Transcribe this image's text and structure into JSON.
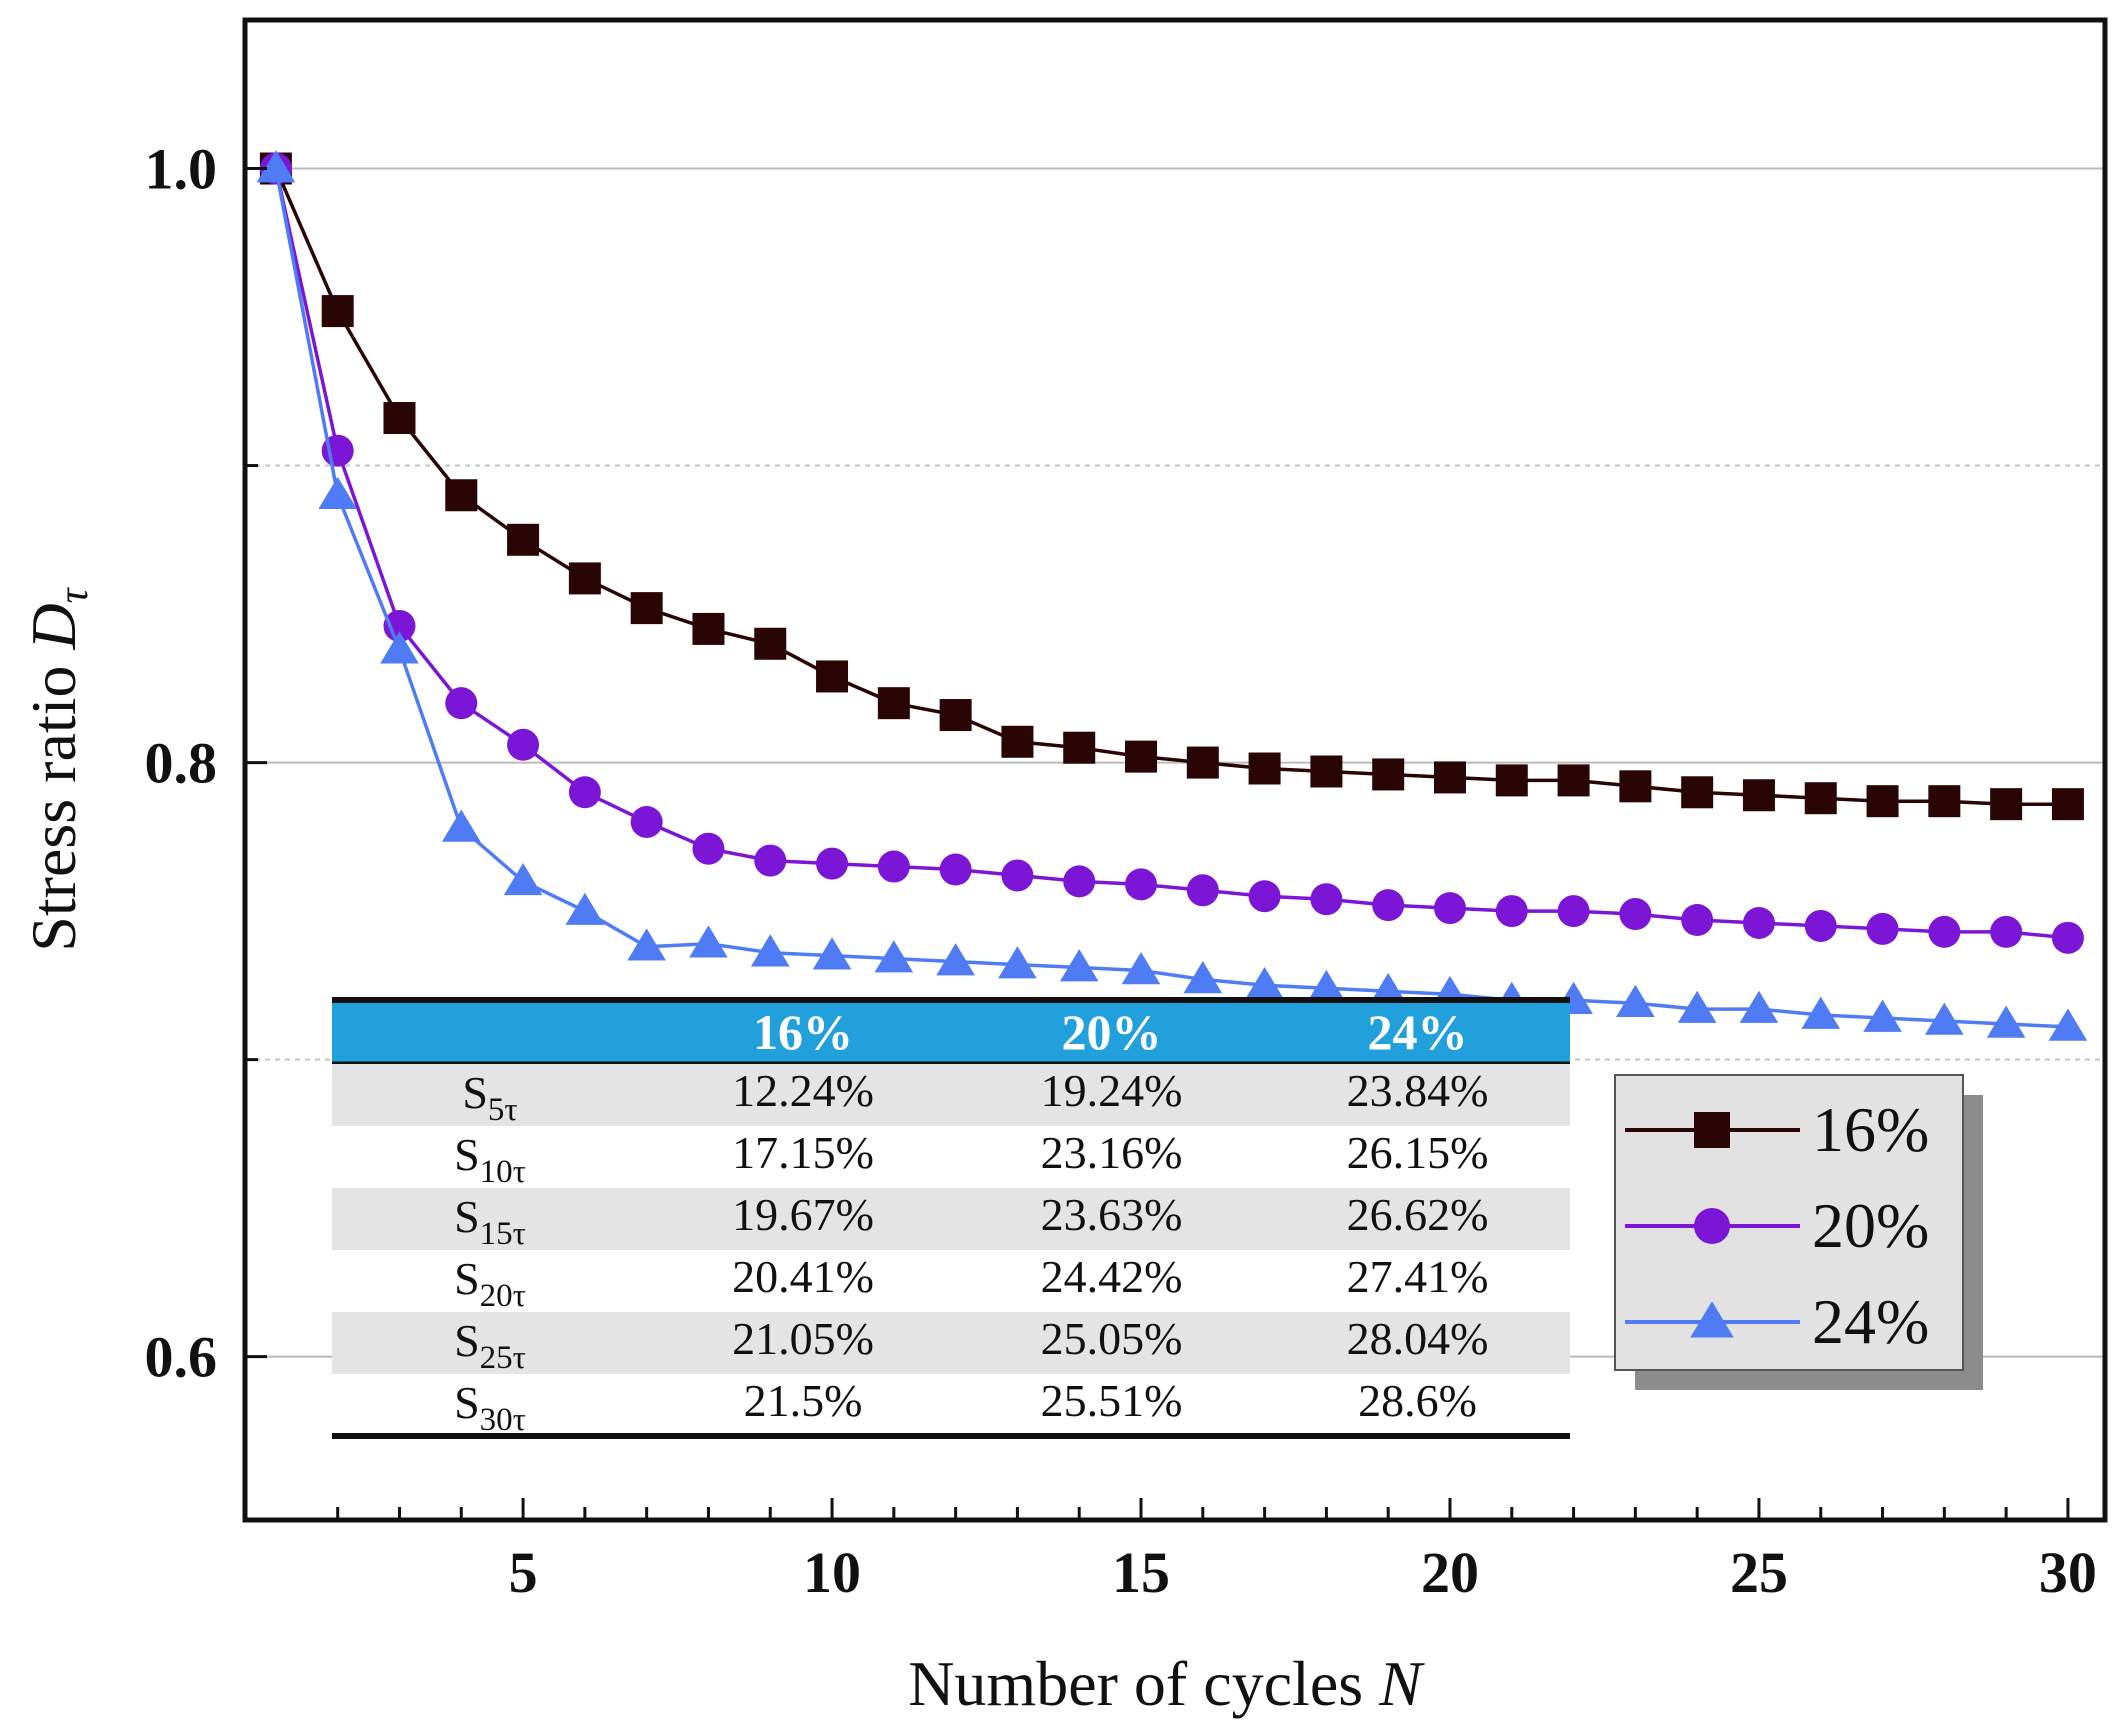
{
  "chart_data": {
    "type": "line",
    "xlabel": "Number of cycles",
    "xlabel_var": "N",
    "ylabel": "Stress ratio",
    "ylabel_var": "D",
    "ylabel_sub": "τ",
    "xlim": [
      0.5,
      30.6
    ],
    "ylim": [
      0.545,
      1.05
    ],
    "x_ticks": [
      5,
      10,
      15,
      20,
      25,
      30
    ],
    "x_tick_labels": [
      "5",
      "10",
      "15",
      "20",
      "25",
      "30"
    ],
    "y_ticks": [
      0.6,
      0.8,
      1.0
    ],
    "y_tick_labels": [
      "0.6",
      "0.8",
      "1.0"
    ],
    "y_minor_gridlines": [
      0.7,
      0.9
    ],
    "legend_position": "center-right",
    "x": [
      1,
      2,
      3,
      4,
      5,
      6,
      7,
      8,
      9,
      10,
      11,
      12,
      13,
      14,
      15,
      16,
      17,
      18,
      19,
      20,
      21,
      22,
      23,
      24,
      25,
      26,
      27,
      28,
      29,
      30
    ],
    "series": [
      {
        "name": "16%",
        "color": "#2a0505",
        "marker": "square",
        "values": [
          1.0,
          0.952,
          0.916,
          0.89,
          0.875,
          0.862,
          0.852,
          0.845,
          0.84,
          0.829,
          0.82,
          0.816,
          0.807,
          0.805,
          0.802,
          0.8,
          0.798,
          0.797,
          0.796,
          0.795,
          0.794,
          0.794,
          0.792,
          0.79,
          0.789,
          0.788,
          0.787,
          0.787,
          0.786,
          0.786
        ]
      },
      {
        "name": "20%",
        "color": "#7b16d6",
        "marker": "circle",
        "values": [
          1.0,
          0.905,
          0.846,
          0.82,
          0.806,
          0.79,
          0.78,
          0.771,
          0.767,
          0.766,
          0.765,
          0.764,
          0.762,
          0.76,
          0.759,
          0.757,
          0.755,
          0.754,
          0.752,
          0.751,
          0.75,
          0.75,
          0.749,
          0.747,
          0.746,
          0.745,
          0.744,
          0.743,
          0.743,
          0.741
        ]
      },
      {
        "name": "24%",
        "color": "#4f7cf5",
        "marker": "triangle",
        "values": [
          1.0,
          0.89,
          0.838,
          0.778,
          0.76,
          0.75,
          0.738,
          0.739,
          0.736,
          0.735,
          0.734,
          0.733,
          0.732,
          0.731,
          0.73,
          0.727,
          0.725,
          0.724,
          0.723,
          0.722,
          0.72,
          0.72,
          0.719,
          0.717,
          0.717,
          0.715,
          0.714,
          0.713,
          0.712,
          0.711
        ]
      }
    ],
    "table": {
      "header_color": "#22a0dc",
      "columns": [
        "",
        "16%",
        "20%",
        "24%"
      ],
      "row_label_base": "S",
      "rows": [
        {
          "sub": "5τ",
          "values": [
            "12.24%",
            "19.24%",
            "23.84%"
          ]
        },
        {
          "sub": "10τ",
          "values": [
            "17.15%",
            "23.16%",
            "26.15%"
          ]
        },
        {
          "sub": "15τ",
          "values": [
            "19.67%",
            "23.63%",
            "26.62%"
          ]
        },
        {
          "sub": "20τ",
          "values": [
            "20.41%",
            "24.42%",
            "27.41%"
          ]
        },
        {
          "sub": "25τ",
          "values": [
            "21.05%",
            "25.05%",
            "28.04%"
          ]
        },
        {
          "sub": "30τ",
          "values": [
            "21.5%",
            "25.51%",
            "28.6%"
          ]
        }
      ]
    }
  }
}
